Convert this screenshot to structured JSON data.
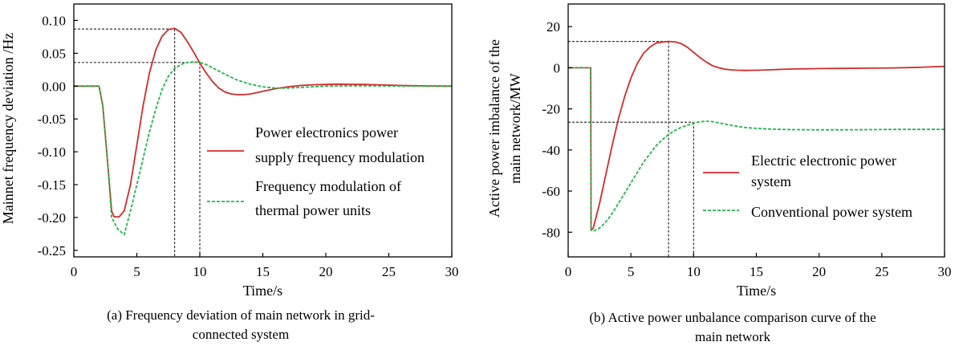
{
  "figure": {
    "colors": {
      "series_a": "#d42a2a",
      "series_b": "#22b84a",
      "guide": "#333333",
      "axis": "#000000"
    }
  },
  "chart_data": [
    {
      "type": "line",
      "caption_lines": [
        "(a) Frequency deviation of main network in grid-",
        "connected system"
      ],
      "xlabel": "Time/s",
      "ylabel": "Mainnet frequency deviation /Hz",
      "xlim": [
        0,
        30
      ],
      "ylim": [
        -0.26,
        0.125
      ],
      "x_ticks": [
        0,
        5,
        10,
        15,
        20,
        25,
        30
      ],
      "x_tick_labels": [
        "0",
        "5",
        "10",
        "15",
        "20",
        "25",
        "30"
      ],
      "y_ticks": [
        0.1,
        0.05,
        0.0,
        -0.05,
        -0.1,
        -0.15,
        -0.2,
        -0.25
      ],
      "y_tick_labels": [
        "0.10",
        "0.05",
        "0.00",
        "-0.05",
        "-0.10",
        "-0.15",
        "-0.20",
        "-0.25"
      ],
      "grid": false,
      "legend_position": "center-right",
      "series": [
        {
          "name_lines": [
            "Power electronics power",
            "supply frequency modulation"
          ],
          "style": "solid",
          "x": [
            0,
            2,
            2.3,
            2.7,
            3,
            3.2,
            3.6,
            4,
            4.5,
            5,
            5.5,
            6,
            6.5,
            7,
            7.5,
            8,
            8.5,
            9,
            9.5,
            10,
            10.5,
            11,
            11.5,
            12,
            12.5,
            13,
            13.5,
            14,
            15,
            16,
            17,
            18,
            19,
            20,
            21,
            22,
            23,
            24,
            25,
            26,
            27,
            28,
            29,
            30
          ],
          "y": [
            0,
            0,
            -0.03,
            -0.12,
            -0.19,
            -0.199,
            -0.199,
            -0.19,
            -0.15,
            -0.09,
            -0.03,
            0.02,
            0.055,
            0.076,
            0.086,
            0.088,
            0.082,
            0.068,
            0.052,
            0.035,
            0.02,
            0.007,
            -0.003,
            -0.009,
            -0.012,
            -0.013,
            -0.013,
            -0.012,
            -0.008,
            -0.004,
            -0.001,
            0.001,
            0.002,
            0.0025,
            0.003,
            0.0028,
            0.0025,
            0.002,
            0.0015,
            0.001,
            0.0006,
            0.0003,
            0.0001,
            0
          ]
        },
        {
          "name_lines": [
            "Frequency modulation of",
            "thermal power units"
          ],
          "style": "dashed",
          "x": [
            0,
            2,
            2.3,
            2.7,
            3,
            3.5,
            4,
            4.5,
            5,
            5.5,
            6,
            6.5,
            7,
            7.5,
            8,
            8.5,
            9,
            9.5,
            10,
            10.5,
            11,
            12,
            13,
            14,
            15,
            16,
            17,
            18,
            19,
            20,
            22,
            24,
            26,
            28,
            30
          ],
          "y": [
            0,
            0,
            -0.03,
            -0.12,
            -0.2,
            -0.218,
            -0.226,
            -0.19,
            -0.15,
            -0.11,
            -0.07,
            -0.035,
            -0.005,
            0.015,
            0.027,
            0.033,
            0.036,
            0.037,
            0.036,
            0.033,
            0.028,
            0.018,
            0.009,
            0.003,
            -0.001,
            -0.003,
            -0.003,
            -0.002,
            -0.001,
            0,
            0.0005,
            0.0003,
            0.0001,
            0,
            0
          ]
        }
      ],
      "guides": [
        {
          "x": 8,
          "y": 0.087
        },
        {
          "x": 10,
          "y": 0.036
        }
      ]
    },
    {
      "type": "line",
      "caption_lines": [
        "(b) Active power unbalance comparison curve of the",
        "main network"
      ],
      "xlabel": "Time/s",
      "ylabel_lines": [
        "Active power imbalance of the",
        "main network/MW"
      ],
      "xlim": [
        0,
        30
      ],
      "ylim": [
        -92,
        31
      ],
      "x_ticks": [
        0,
        5,
        10,
        15,
        20,
        25,
        30
      ],
      "x_tick_labels": [
        "0",
        "5",
        "10",
        "15",
        "20",
        "25",
        "30"
      ],
      "y_ticks": [
        20,
        0,
        -20,
        -40,
        -60,
        -80
      ],
      "y_tick_labels": [
        "20",
        "0",
        "-20",
        "-40",
        "-60",
        "-80"
      ],
      "grid": false,
      "legend_position": "center-right",
      "series": [
        {
          "name_lines": [
            "Electric electronic power",
            "system"
          ],
          "style": "solid",
          "x": [
            0,
            1.8,
            1.82,
            2,
            2.5,
            3,
            3.5,
            4,
            4.5,
            5,
            5.5,
            6,
            6.5,
            7,
            7.5,
            8,
            8.5,
            9,
            9.5,
            10,
            10.5,
            11,
            11.5,
            12,
            12.5,
            13,
            13.5,
            14,
            15,
            16,
            17,
            18,
            19,
            20,
            22,
            24,
            26,
            28,
            30
          ],
          "y": [
            0,
            0,
            -79,
            -78,
            -66,
            -52,
            -38,
            -25,
            -14,
            -5,
            2,
            7,
            10,
            12,
            12.5,
            12.8,
            12.6,
            11.8,
            10,
            7.5,
            5,
            2.8,
            1,
            0,
            -0.7,
            -1,
            -1.2,
            -1.3,
            -1.2,
            -1,
            -0.8,
            -0.6,
            -0.5,
            -0.4,
            -0.3,
            -0.2,
            -0.1,
            0.2,
            0.7
          ]
        },
        {
          "name_lines": [
            "Conventional power system"
          ],
          "style": "dashed",
          "x": [
            0,
            1.8,
            1.82,
            2,
            2.5,
            3,
            3.5,
            4,
            4.5,
            5,
            5.5,
            6,
            6.5,
            7,
            7.5,
            8,
            8.5,
            9,
            9.5,
            10,
            10.5,
            11,
            11.5,
            12,
            13,
            14,
            15,
            16,
            17,
            18,
            20,
            22,
            24,
            26,
            28,
            30
          ],
          "y": [
            0,
            0,
            -79,
            -79.5,
            -78,
            -75,
            -71,
            -66,
            -61,
            -56,
            -51,
            -46,
            -42,
            -38,
            -35,
            -32.5,
            -30.5,
            -29,
            -28,
            -27,
            -26.3,
            -26,
            -26.2,
            -26.8,
            -28,
            -29,
            -29.5,
            -29.8,
            -30,
            -30.1,
            -30.2,
            -30.2,
            -30.1,
            -30,
            -30,
            -30
          ]
        }
      ],
      "guides": [
        {
          "x": 8,
          "y": 12.8
        },
        {
          "x": 10,
          "y": -26.5
        }
      ]
    }
  ]
}
